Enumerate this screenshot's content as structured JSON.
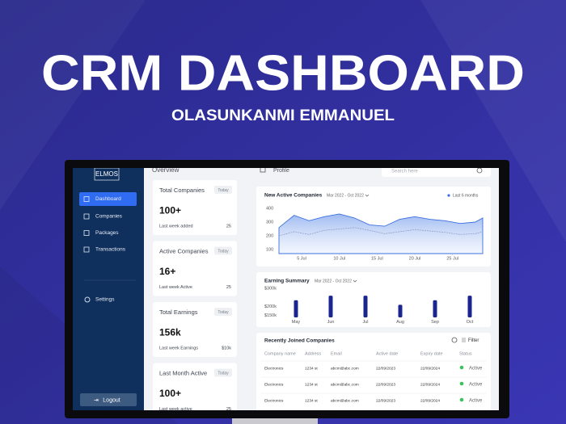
{
  "header": {
    "title": "CRM DASHBOARD",
    "author": "OLASUNKANMI EMMANUEL"
  },
  "sidebar": {
    "logo": "ELMOS",
    "nav": [
      "Dashboard",
      "Companies",
      "Packages",
      "Transactions"
    ],
    "settings": "Settings",
    "logout": "Logout"
  },
  "topbar": {
    "section": "Overview",
    "profile": "Profile",
    "search_placeholder": "Search here"
  },
  "cards": [
    {
      "title": "Total Companies",
      "badge": "Today",
      "value": "100+",
      "footer_label": "Last week added",
      "footer_value": "25"
    },
    {
      "title": "Active Companies",
      "badge": "Today",
      "value": "16+",
      "footer_label": "Last week Active",
      "footer_value": "25"
    },
    {
      "title": "Total  Earnings",
      "badge": "Today",
      "value": "156k",
      "footer_label": "Last week Earnings",
      "footer_value": "$10k"
    },
    {
      "title": "Last Month Active",
      "badge": "Today",
      "value": "100+",
      "footer_label": "Last week active",
      "footer_value": "25"
    }
  ],
  "charts": [
    {
      "type": "line",
      "title": "New Active Companies",
      "date_range": "Mar 2022 - Oct 2022",
      "x": [
        2,
        4,
        6,
        8,
        10,
        12,
        14,
        16,
        18,
        20,
        22,
        24,
        26,
        28,
        29
      ],
      "series": [
        {
          "name": "Last 6 months",
          "color": "#3b6fe0",
          "values": [
            260,
            350,
            310,
            340,
            360,
            330,
            280,
            270,
            320,
            340,
            320,
            310,
            290,
            300,
            330
          ]
        },
        {
          "color": "#8c9ac8",
          "values": [
            200,
            230,
            210,
            240,
            250,
            260,
            240,
            215,
            230,
            245,
            235,
            225,
            210,
            215,
            230
          ]
        }
      ],
      "xlim": [
        2,
        29
      ],
      "xticks": [
        {
          "value": 5,
          "label": "5 Jul"
        },
        {
          "value": 10,
          "label": "10 Jul"
        },
        {
          "value": 15,
          "label": "15 Jul"
        },
        {
          "value": 20,
          "label": "20 Jul"
        },
        {
          "value": 25,
          "label": "25 Jul"
        }
      ],
      "ylim": [
        70,
        430
      ],
      "yticks": [
        400,
        300,
        200,
        100
      ],
      "grid": false
    },
    {
      "type": "bar",
      "title": "Earning Summary",
      "date_range": "Mar 2022 - Oct 2022",
      "categories": [
        "May",
        "Jun",
        "Jul",
        "Aug",
        "Sep",
        "Oct"
      ],
      "values": [
        235000,
        260000,
        260000,
        210000,
        235000,
        260000
      ],
      "color": "#1b2590",
      "ylim": [
        140000,
        310000
      ],
      "yticks": [
        {
          "value": 300000,
          "label": "$300k"
        },
        {
          "value": 200000,
          "label": "$200k"
        },
        {
          "value": 150000,
          "label": "$150k"
        }
      ],
      "grid": false
    }
  ],
  "table": {
    "title": "Recently Joined Companies",
    "filter": "Filter",
    "columns": [
      "Company name",
      "Address",
      "Email",
      "Active date",
      "Expiry date",
      "Status"
    ],
    "rows": [
      [
        "Electronics",
        "1234 st",
        "abcm@abc.com",
        "22/09/2023",
        "22/09/2024",
        "Active"
      ],
      [
        "Electronics",
        "1234 st",
        "abcm@abc.com",
        "22/09/2023",
        "22/09/2024",
        "Active"
      ],
      [
        "Electronics",
        "1234 st",
        "abcm@abc.com",
        "22/09/2023",
        "22/09/2024",
        "Active"
      ]
    ]
  }
}
